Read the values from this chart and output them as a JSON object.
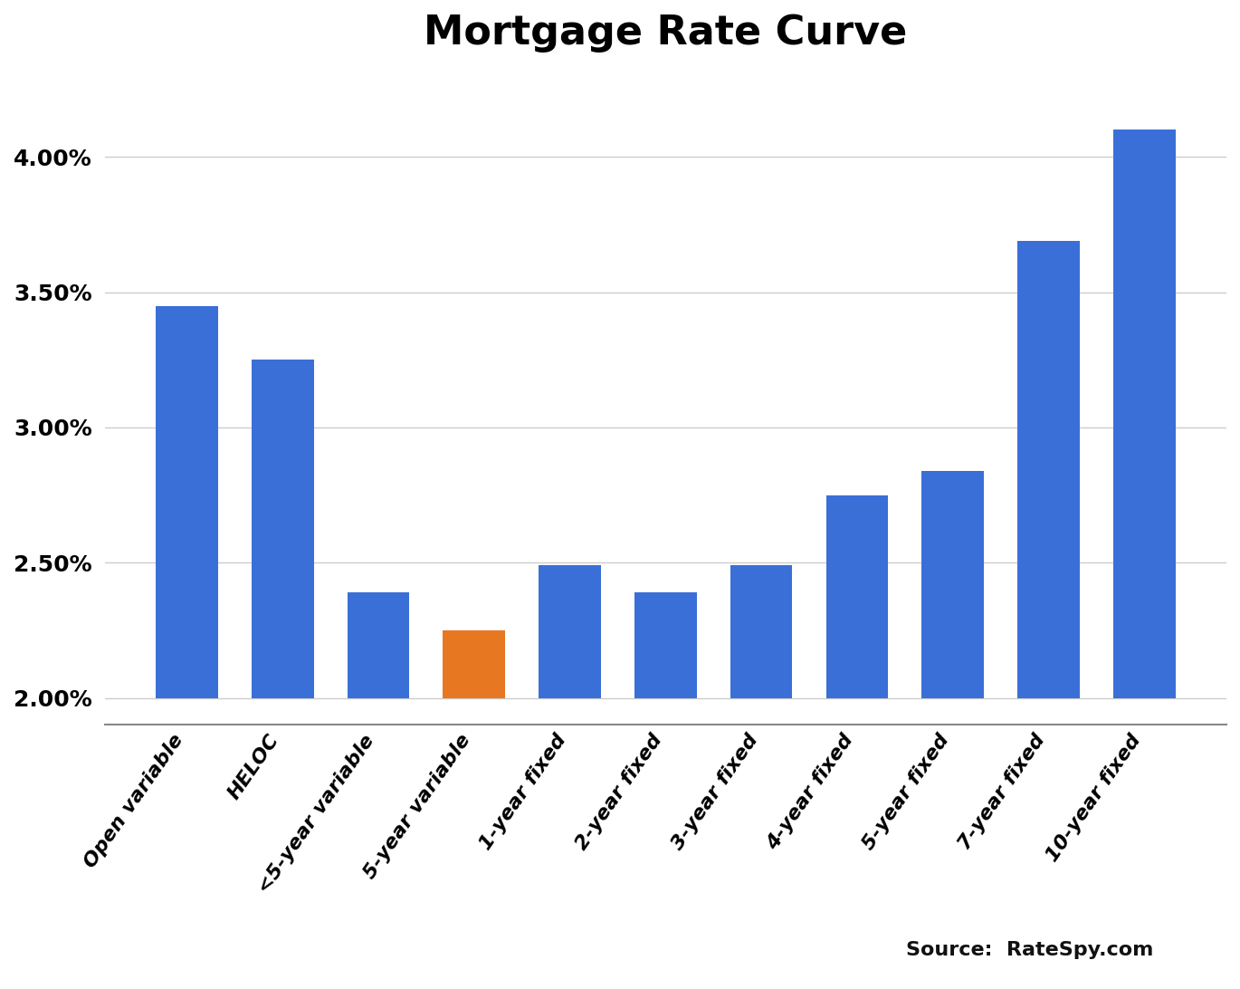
{
  "title": "Mortgage Rate Curve",
  "categories": [
    "Open variable",
    "HELOC",
    "<5-year variable",
    "5-year variable",
    "1-year fixed",
    "2-year fixed",
    "3-year fixed",
    "4-year fixed",
    "5-year fixed",
    "7-year fixed",
    "10-year fixed"
  ],
  "values": [
    0.0345,
    0.0325,
    0.0239,
    0.0225,
    0.0249,
    0.0239,
    0.0249,
    0.0275,
    0.0284,
    0.0369,
    0.041
  ],
  "bar_colors": [
    "#3a6fd8",
    "#3a6fd8",
    "#3a6fd8",
    "#e87722",
    "#3a6fd8",
    "#3a6fd8",
    "#3a6fd8",
    "#3a6fd8",
    "#3a6fd8",
    "#3a6fd8",
    "#3a6fd8"
  ],
  "baseline": 0.02,
  "ylim": [
    0.019,
    0.043
  ],
  "yticks": [
    0.02,
    0.025,
    0.03,
    0.035,
    0.04
  ],
  "ytick_labels": [
    "2.00%",
    "2.50%",
    "3.00%",
    "3.50%",
    "4.00%"
  ],
  "source_text": "Source:  RateSpy.com",
  "background_color": "#ffffff",
  "grid_color": "#cccccc",
  "title_fontsize": 32,
  "tick_fontsize": 18,
  "label_fontsize": 16,
  "source_fontsize": 16
}
